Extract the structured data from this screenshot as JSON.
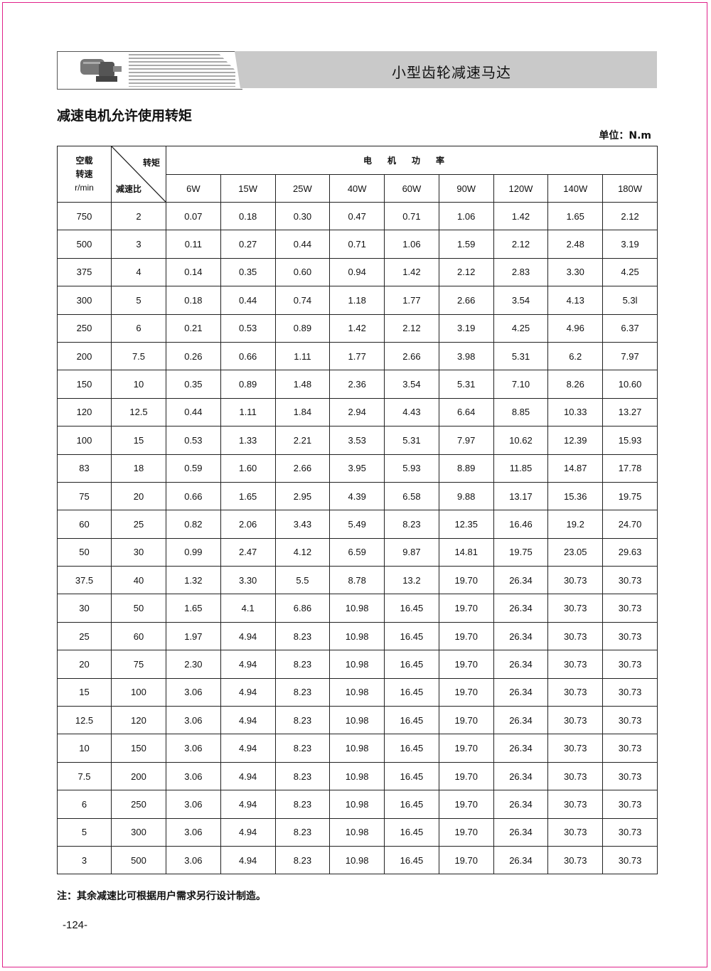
{
  "header": {
    "title": "小型齿轮减速马达"
  },
  "section_title": "减速电机允许使用转矩",
  "unit": "单位：N.m",
  "table": {
    "col1_header": [
      "空载",
      "转速",
      "r/min"
    ],
    "corner_top": "转矩",
    "corner_bottom": "减速比",
    "power_header": "电机功率",
    "power_columns": [
      "6W",
      "15W",
      "25W",
      "40W",
      "60W",
      "90W",
      "120W",
      "140W",
      "180W"
    ],
    "rows": [
      [
        "750",
        "2",
        "0.07",
        "0.18",
        "0.30",
        "0.47",
        "0.71",
        "1.06",
        "1.42",
        "1.65",
        "2.12"
      ],
      [
        "500",
        "3",
        "0.11",
        "0.27",
        "0.44",
        "0.71",
        "1.06",
        "1.59",
        "2.12",
        "2.48",
        "3.19"
      ],
      [
        "375",
        "4",
        "0.14",
        "0.35",
        "0.60",
        "0.94",
        "1.42",
        "2.12",
        "2.83",
        "3.30",
        "4.25"
      ],
      [
        "300",
        "5",
        "0.18",
        "0.44",
        "0.74",
        "1.18",
        "1.77",
        "2.66",
        "3.54",
        "4.13",
        "5.3l"
      ],
      [
        "250",
        "6",
        "0.21",
        "0.53",
        "0.89",
        "1.42",
        "2.12",
        "3.19",
        "4.25",
        "4.96",
        "6.37"
      ],
      [
        "200",
        "7.5",
        "0.26",
        "0.66",
        "1.11",
        "1.77",
        "2.66",
        "3.98",
        "5.31",
        "6.2",
        "7.97"
      ],
      [
        "150",
        "10",
        "0.35",
        "0.89",
        "1.48",
        "2.36",
        "3.54",
        "5.31",
        "7.10",
        "8.26",
        "10.60"
      ],
      [
        "120",
        "12.5",
        "0.44",
        "1.11",
        "1.84",
        "2.94",
        "4.43",
        "6.64",
        "8.85",
        "10.33",
        "13.27"
      ],
      [
        "100",
        "15",
        "0.53",
        "1.33",
        "2.21",
        "3.53",
        "5.31",
        "7.97",
        "10.62",
        "12.39",
        "15.93"
      ],
      [
        "83",
        "18",
        "0.59",
        "1.60",
        "2.66",
        "3.95",
        "5.93",
        "8.89",
        "11.85",
        "14.87",
        "17.78"
      ],
      [
        "75",
        "20",
        "0.66",
        "1.65",
        "2.95",
        "4.39",
        "6.58",
        "9.88",
        "13.17",
        "15.36",
        "19.75"
      ],
      [
        "60",
        "25",
        "0.82",
        "2.06",
        "3.43",
        "5.49",
        "8.23",
        "12.35",
        "16.46",
        "19.2",
        "24.70"
      ],
      [
        "50",
        "30",
        "0.99",
        "2.47",
        "4.12",
        "6.59",
        "9.87",
        "14.81",
        "19.75",
        "23.05",
        "29.63"
      ],
      [
        "37.5",
        "40",
        "1.32",
        "3.30",
        "5.5",
        "8.78",
        "13.2",
        "19.70",
        "26.34",
        "30.73",
        "30.73"
      ],
      [
        "30",
        "50",
        "1.65",
        "4.1",
        "6.86",
        "10.98",
        "16.45",
        "19.70",
        "26.34",
        "30.73",
        "30.73"
      ],
      [
        "25",
        "60",
        "1.97",
        "4.94",
        "8.23",
        "10.98",
        "16.45",
        "19.70",
        "26.34",
        "30.73",
        "30.73"
      ],
      [
        "20",
        "75",
        "2.30",
        "4.94",
        "8.23",
        "10.98",
        "16.45",
        "19.70",
        "26.34",
        "30.73",
        "30.73"
      ],
      [
        "15",
        "100",
        "3.06",
        "4.94",
        "8.23",
        "10.98",
        "16.45",
        "19.70",
        "26.34",
        "30.73",
        "30.73"
      ],
      [
        "12.5",
        "120",
        "3.06",
        "4.94",
        "8.23",
        "10.98",
        "16.45",
        "19.70",
        "26.34",
        "30.73",
        "30.73"
      ],
      [
        "10",
        "150",
        "3.06",
        "4.94",
        "8.23",
        "10.98",
        "16.45",
        "19.70",
        "26.34",
        "30.73",
        "30.73"
      ],
      [
        "7.5",
        "200",
        "3.06",
        "4.94",
        "8.23",
        "10.98",
        "16.45",
        "19.70",
        "26.34",
        "30.73",
        "30.73"
      ],
      [
        "6",
        "250",
        "3.06",
        "4.94",
        "8.23",
        "10.98",
        "16.45",
        "19.70",
        "26.34",
        "30.73",
        "30.73"
      ],
      [
        "5",
        "300",
        "3.06",
        "4.94",
        "8.23",
        "10.98",
        "16.45",
        "19.70",
        "26.34",
        "30.73",
        "30.73"
      ],
      [
        "3",
        "500",
        "3.06",
        "4.94",
        "8.23",
        "10.98",
        "16.45",
        "19.70",
        "26.34",
        "30.73",
        "30.73"
      ]
    ]
  },
  "note": "注：其余减速比可根据用户需求另行设计制造。",
  "page_number": "-124-",
  "colors": {
    "border": "#e0218a",
    "banner": "#c9c9c9"
  }
}
